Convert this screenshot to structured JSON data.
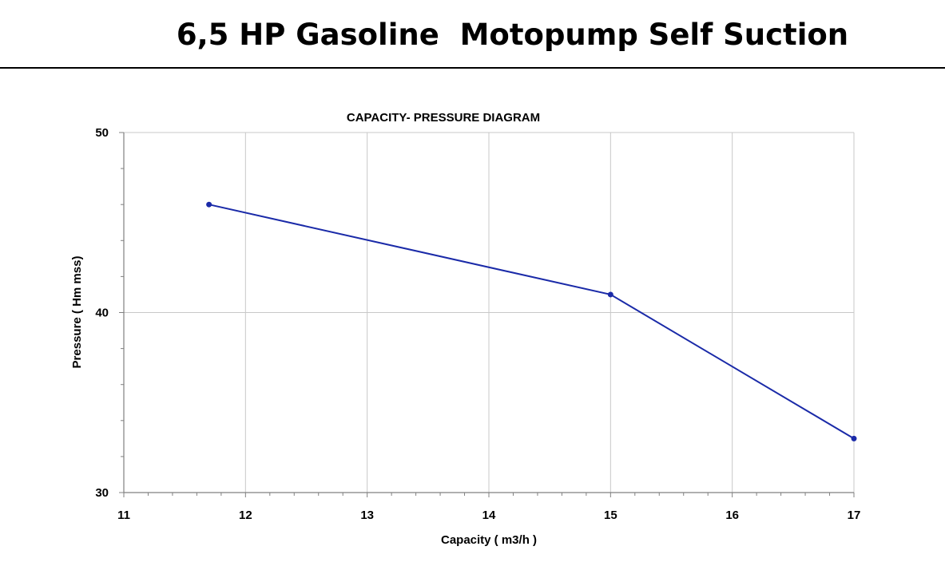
{
  "page": {
    "title": "6,5 HP Gasoline  Motopump Self Suction"
  },
  "chart_data": {
    "type": "line",
    "title": "CAPACITY- PRESSURE DIAGRAM",
    "xlabel": "Capacity ( m3/h )",
    "ylabel": "Pressure ( Hm mss)",
    "xlim": [
      11,
      17
    ],
    "ylim": [
      30,
      50
    ],
    "xticks": [
      11,
      12,
      13,
      14,
      15,
      16,
      17
    ],
    "yticks": [
      30,
      40,
      50
    ],
    "grid": true,
    "series": [
      {
        "x": [
          11.7,
          15,
          17
        ],
        "y": [
          46,
          41,
          33
        ],
        "color": "#1a2aa8"
      }
    ]
  }
}
